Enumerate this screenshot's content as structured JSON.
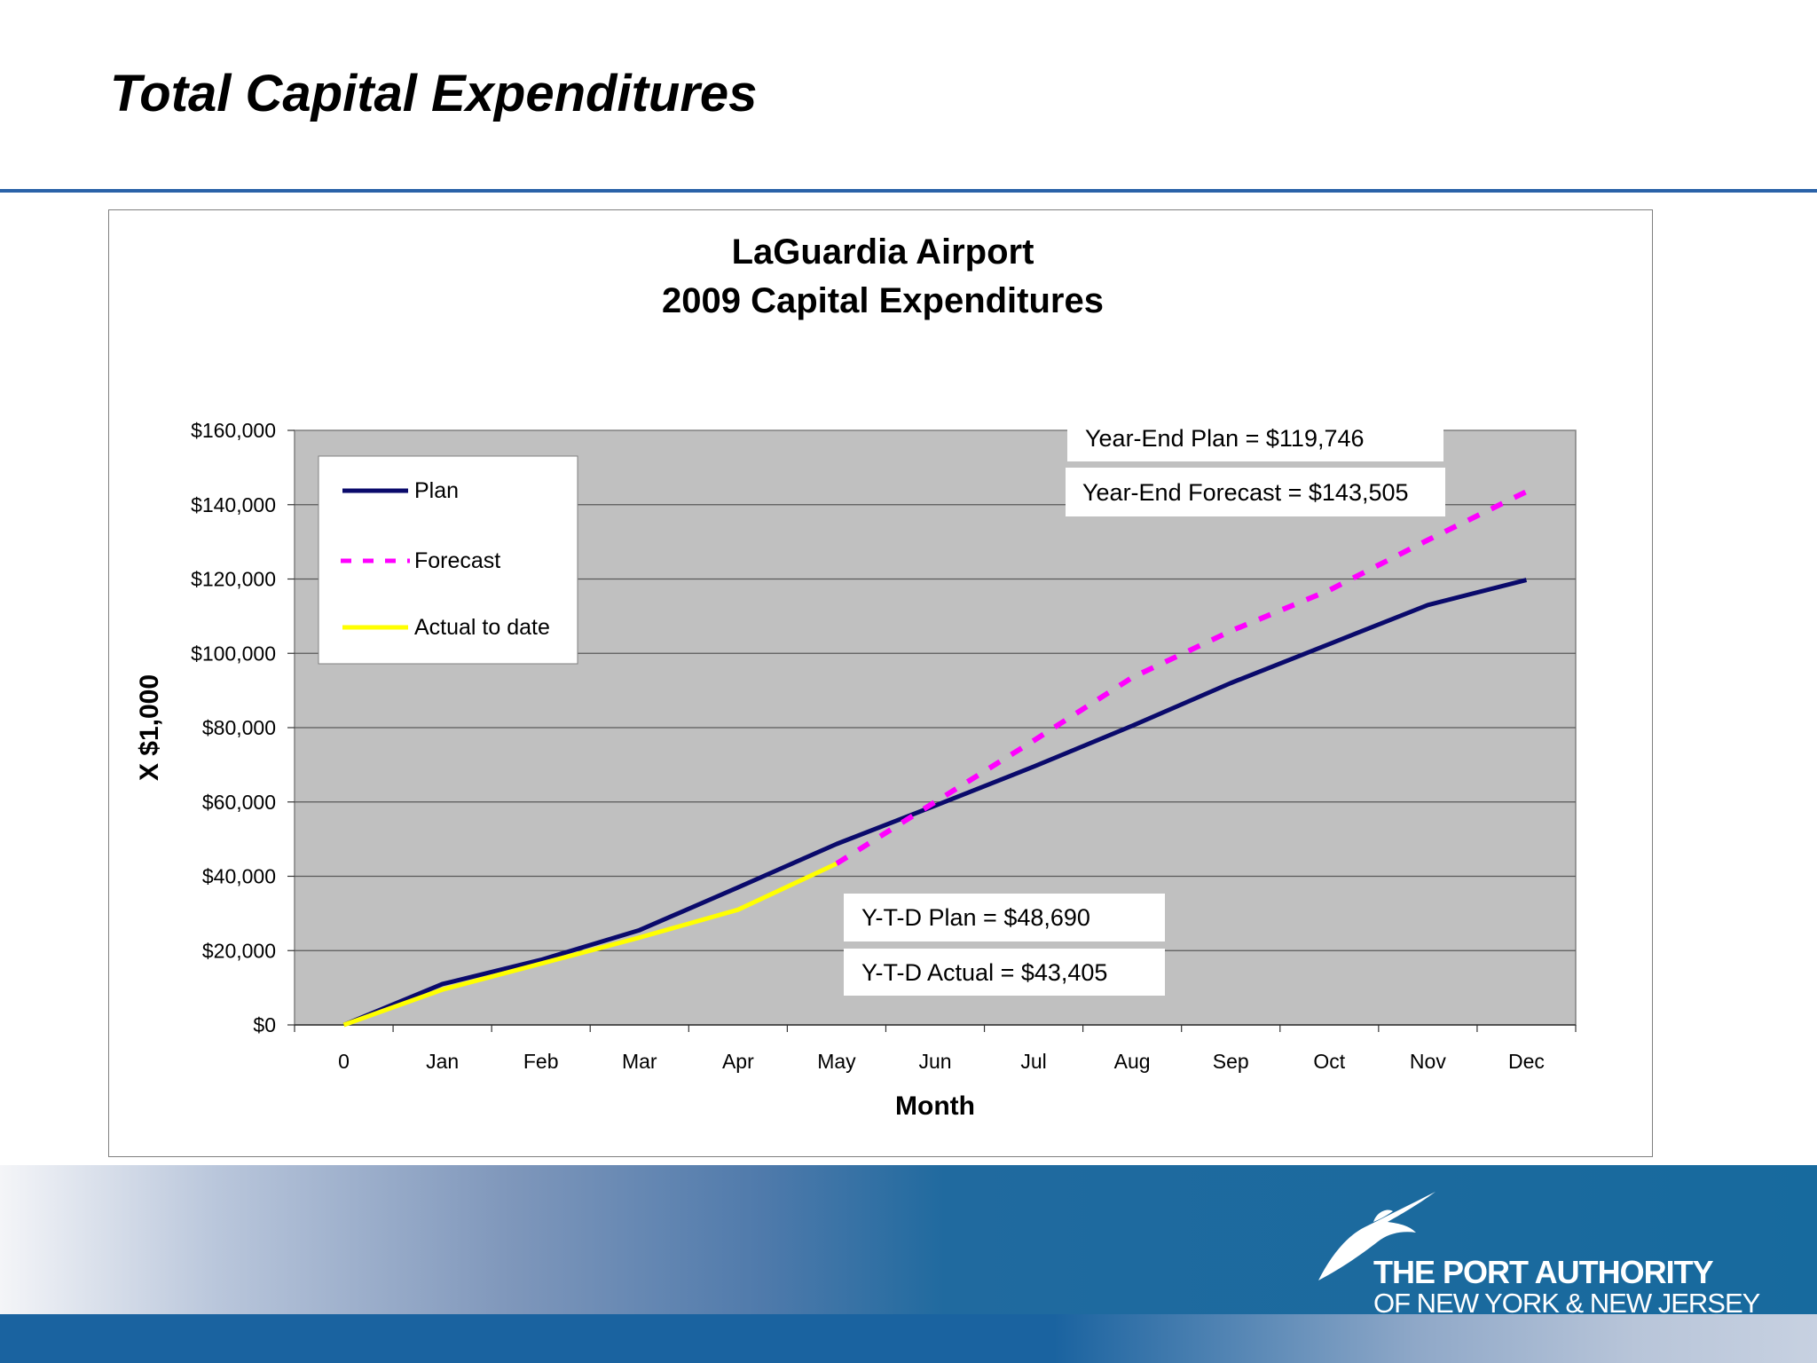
{
  "slide": {
    "title": "Total Capital Expenditures"
  },
  "chart_data": {
    "type": "line",
    "title": "LaGuardia Airport",
    "subtitle": "2009 Capital Expenditures",
    "xlabel": "Month",
    "ylabel": "X $1,000",
    "categories": [
      "0",
      "Jan",
      "Feb",
      "Mar",
      "Apr",
      "May",
      "Jun",
      "Jul",
      "Aug",
      "Sep",
      "Oct",
      "Nov",
      "Dec"
    ],
    "ylim": [
      0,
      160000
    ],
    "yticks": [
      0,
      20000,
      40000,
      60000,
      80000,
      100000,
      120000,
      140000,
      160000
    ],
    "ytick_labels": [
      "$0",
      "$20,000",
      "$40,000",
      "$60,000",
      "$80,000",
      "$100,000",
      "$120,000",
      "$140,000",
      "$160,000"
    ],
    "grid": true,
    "legend_position": "top-left",
    "series": [
      {
        "name": "Plan",
        "color": "#0a0a6b",
        "style": "solid",
        "values": [
          0,
          11000,
          17500,
          25500,
          37000,
          48690,
          59000,
          69500,
          80500,
          92000,
          102500,
          113000,
          119746
        ]
      },
      {
        "name": "Forecast",
        "color": "#ff00ff",
        "style": "dashed",
        "values": [
          null,
          null,
          null,
          null,
          null,
          43405,
          60000,
          76500,
          93500,
          106000,
          117000,
          130500,
          143505
        ]
      },
      {
        "name": "Actual to date",
        "color": "#ffff00",
        "style": "solid",
        "values": [
          0,
          9500,
          16500,
          23500,
          31000,
          43405,
          null,
          null,
          null,
          null,
          null,
          null,
          null
        ]
      }
    ],
    "annotations": {
      "year_end_plan": "Year-End Plan = $119,746",
      "year_end_forecast": "Year-End Forecast = $143,505",
      "ytd_plan": "Y-T-D Plan = $48,690",
      "ytd_actual": "Y-T-D Actual = $43,405"
    }
  },
  "footer": {
    "logo_line1": "THE PORT AUTHORITY",
    "logo_line2": "OF NEW YORK & NEW JERSEY"
  }
}
